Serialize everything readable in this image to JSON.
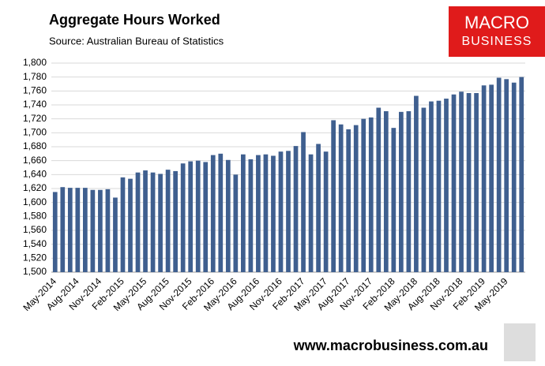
{
  "chart_data": {
    "type": "bar",
    "title": "Aggregate Hours Worked",
    "subtitle": "Source: Australian Bureau of Statistics",
    "logo": {
      "line1": "MACRO",
      "line2": "BUSINESS"
    },
    "footer": "www.macrobusiness.com.au",
    "categories": [
      "May-2014",
      null,
      null,
      "Aug-2014",
      null,
      null,
      "Nov-2014",
      null,
      null,
      "Feb-2015",
      null,
      null,
      "May-2015",
      null,
      null,
      "Aug-2015",
      null,
      null,
      "Nov-2015",
      null,
      null,
      "Feb-2016",
      null,
      null,
      "May-2016",
      null,
      null,
      "Aug-2016",
      null,
      null,
      "Nov-2016",
      null,
      null,
      "Feb-2017",
      null,
      null,
      "May-2017",
      null,
      null,
      "Aug-2017",
      null,
      null,
      "Nov-2017",
      null,
      null,
      "Feb-2018",
      null,
      null,
      "May-2018",
      null,
      null,
      "Aug-2018",
      null,
      null,
      "Nov-2018",
      null,
      null,
      "Feb-2019",
      null,
      null,
      "May-2019",
      null,
      null
    ],
    "values": [
      1615,
      1622,
      1621,
      1621,
      1621,
      1618,
      1618,
      1619,
      1607,
      1636,
      1634,
      1643,
      1646,
      1643,
      1641,
      1647,
      1645,
      1656,
      1659,
      1660,
      1658,
      1668,
      1670,
      1661,
      1640,
      1669,
      1662,
      1668,
      1669,
      1667,
      1673,
      1674,
      1681,
      1701,
      1669,
      1684,
      1673,
      1718,
      1712,
      1705,
      1711,
      1720,
      1722,
      1736,
      1731,
      1707,
      1730,
      1731,
      1753,
      1736,
      1745,
      1746,
      1749,
      1755,
      1759,
      1757,
      1757,
      1768,
      1769,
      1779,
      1777,
      1772,
      1780
    ],
    "color": "#3f5f8f",
    "ylim": [
      1500,
      1800
    ],
    "yticks": [
      {
        "value": 1500,
        "label": "1,500"
      },
      {
        "value": 1520,
        "label": "1,520"
      },
      {
        "value": 1540,
        "label": "1,540"
      },
      {
        "value": 1560,
        "label": "1,560"
      },
      {
        "value": 1580,
        "label": "1,580"
      },
      {
        "value": 1600,
        "label": "1,600"
      },
      {
        "value": 1620,
        "label": "1,620"
      },
      {
        "value": 1640,
        "label": "1,640"
      },
      {
        "value": 1660,
        "label": "1,660"
      },
      {
        "value": 1680,
        "label": "1,680"
      },
      {
        "value": 1700,
        "label": "1,700"
      },
      {
        "value": 1720,
        "label": "1,720"
      },
      {
        "value": 1740,
        "label": "1,740"
      },
      {
        "value": 1760,
        "label": "1,760"
      },
      {
        "value": 1780,
        "label": "1,780"
      },
      {
        "value": 1800,
        "label": "1,800"
      }
    ],
    "grid": true
  }
}
